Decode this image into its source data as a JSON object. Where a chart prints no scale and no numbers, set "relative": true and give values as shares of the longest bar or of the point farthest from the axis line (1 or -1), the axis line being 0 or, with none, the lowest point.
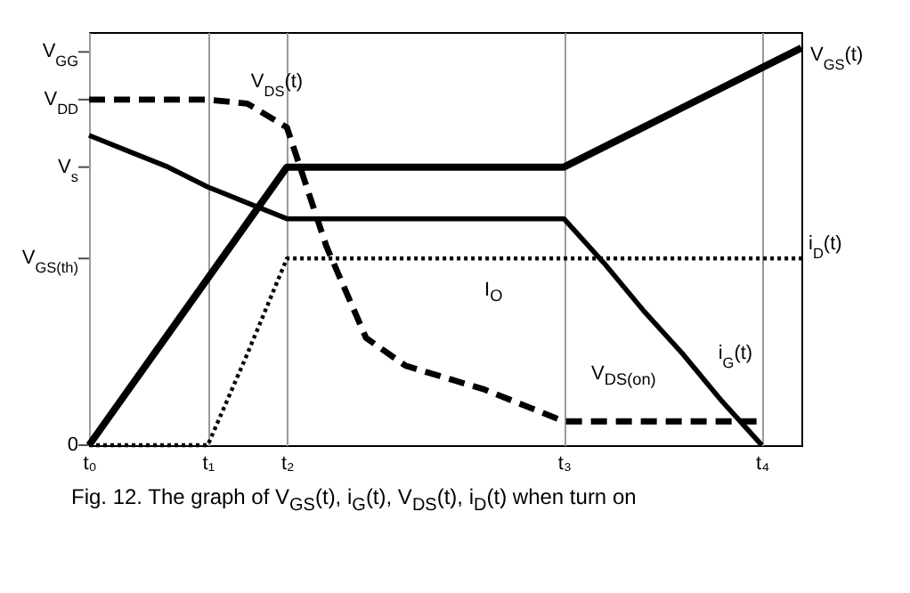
{
  "chart_data": {
    "type": "line",
    "relative": true,
    "annotations": [
      "Fig. 12. The graph of V$_{GS}$(t), i$_{G}$(t), V$_{DS}$(t), i$_{D}$(t) when turn on",
      "I$_{O}$",
      "V$_{DS(on)}$"
    ],
    "categories": [
      "t₀",
      null,
      null,
      "t₁",
      null,
      "t₂",
      null,
      null,
      null,
      null,
      null,
      null,
      "t₃",
      null,
      null,
      null,
      null,
      "t₄",
      null
    ],
    "ref_lines": [
      {
        "axis": "y",
        "value": 0,
        "label": "0"
      },
      {
        "axis": "y",
        "value": 0.47,
        "label": "V$_{GS(th)}$"
      },
      {
        "axis": "y",
        "value": 0.7,
        "label": "V$_{s}$"
      },
      {
        "axis": "y",
        "value": 0.87,
        "label": "V$_{DD}$"
      },
      {
        "axis": "y",
        "value": 0.99,
        "label": "V$_{GG}$"
      }
    ],
    "grid": "x",
    "marker": "none",
    "series": [
      {
        "name": "V$_{GS}$(t)",
        "color": "#000000",
        "line_style": "solid",
        "values": [
          0,
          0.14,
          0.28,
          0.42,
          0.56,
          0.7,
          0.7,
          0.7,
          0.7,
          0.7,
          0.7,
          0.7,
          0.7,
          0.75,
          0.8,
          0.85,
          0.9,
          0.95,
          1
        ]
      },
      {
        "name": "V$_{DS}$(t)",
        "color": "#000000",
        "line_style": "dashed",
        "values": [
          0.87,
          0.87,
          0.87,
          0.87,
          0.86,
          0.8,
          0.5,
          0.27,
          0.2,
          0.17,
          0.14,
          0.1,
          0.06,
          0.06,
          0.06,
          0.06,
          0.06,
          0.06,
          null
        ]
      },
      {
        "name": "i$_{G}$(t)",
        "color": "#000000",
        "line_style": "solid",
        "values": [
          0.78,
          0.74,
          0.7,
          0.65,
          0.61,
          0.57,
          0.57,
          0.57,
          0.57,
          0.57,
          0.57,
          0.57,
          0.57,
          0.46,
          0.34,
          0.23,
          0.11,
          0,
          null
        ]
      },
      {
        "name": "i$_{D}$(t)",
        "color": "#000000",
        "line_style": "dotted",
        "values": [
          0,
          0,
          0,
          0,
          0.23,
          0.47,
          0.47,
          0.47,
          0.47,
          0.47,
          0.47,
          0.47,
          0.47,
          0.47,
          0.47,
          0.47,
          0.47,
          0.47,
          0.47
        ]
      }
    ]
  }
}
